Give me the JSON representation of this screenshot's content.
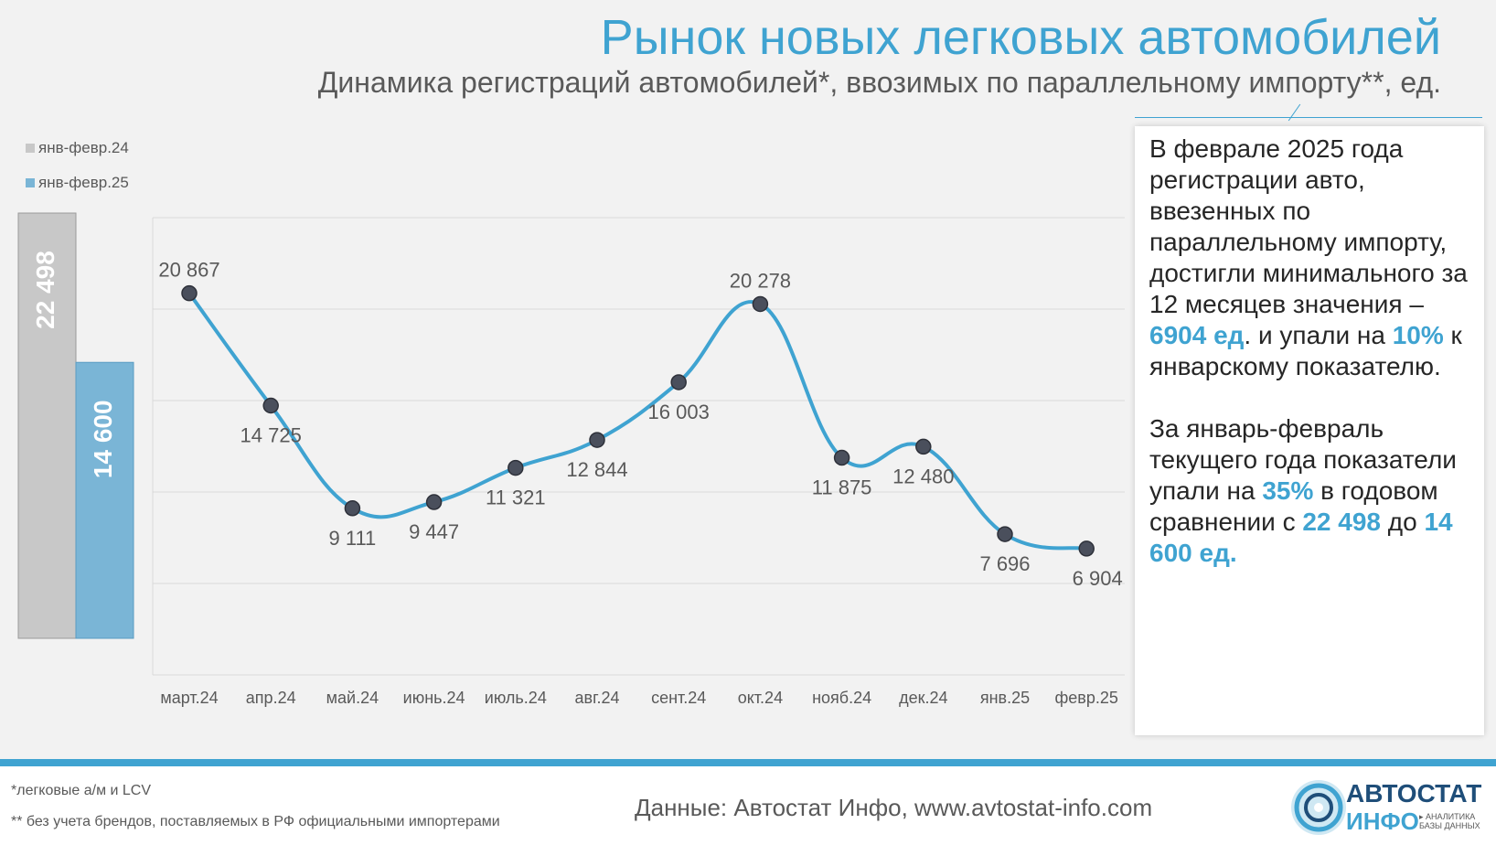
{
  "header": {
    "title": "Рынок новых легковых автомобилей",
    "subtitle": "Динамика регистраций автомобилей*, ввозимых по параллельному импорту**, ед."
  },
  "colors": {
    "accent": "#3fa3d1",
    "bar_2024": "#c8c8c8",
    "bar_2025": "#7ab5d6",
    "marker": "#4a4f5c"
  },
  "chart_data": [
    {
      "type": "bar",
      "categories": [
        "янв-февр.24",
        "янв-февр.25"
      ],
      "values": [
        22498,
        14600
      ],
      "value_labels": [
        "22 498",
        "14 600"
      ],
      "legend": [
        {
          "label": "янв-февр.24",
          "color": "#c8c8c8"
        },
        {
          "label": "янв-февр.25",
          "color": "#7ab5d6"
        }
      ],
      "legend_position": "top-left"
    },
    {
      "type": "line",
      "categories": [
        "март.24",
        "апр.24",
        "май.24",
        "июнь.24",
        "июль.24",
        "авг.24",
        "сент.24",
        "окт.24",
        "нояб.24",
        "дек.24",
        "янв.25",
        "февр.25"
      ],
      "values": [
        20867,
        14725,
        9111,
        9447,
        11321,
        12844,
        16003,
        20278,
        11875,
        12480,
        7696,
        6904
      ],
      "value_labels": [
        "20 867",
        "14 725",
        "9 111",
        "9 447",
        "11 321",
        "12 844",
        "16 003",
        "20 278",
        "11 875",
        "12 480",
        "7 696",
        "6 904"
      ],
      "ylim": [
        0,
        25000
      ],
      "grid": true,
      "smooth": true
    }
  ],
  "info": {
    "p1_a": "В феврале 2025 года регистрации авто, ввезенных по параллельному импорту, достигли минимального за 12 месяцев значения –",
    "p1_hl1": "6904 ед",
    "p1_b": ". и упали на",
    "p1_hl2": "10%",
    "p1_c": "к январскому показателю.",
    "p2_a": "За январь-февраль текущего года показатели упали на",
    "p2_hl1": "35%",
    "p2_b": "в годовом сравнении с",
    "p2_hl2": "22 498",
    "p2_c": "до",
    "p2_hl3": "14 600 ед."
  },
  "footer": {
    "note1": "*легковые а/м и LCV",
    "note2": "** без учета брендов, поставляемых в РФ официальными импортерами",
    "source": "Данные: Автостат Инфо, www.avtostat-info.com"
  },
  "logo": {
    "line1": "АВТОСТАТ",
    "line2": "ИНФО",
    "tagline": "▸ АНАЛИТИКА БАЗЫ ДАННЫХ"
  }
}
